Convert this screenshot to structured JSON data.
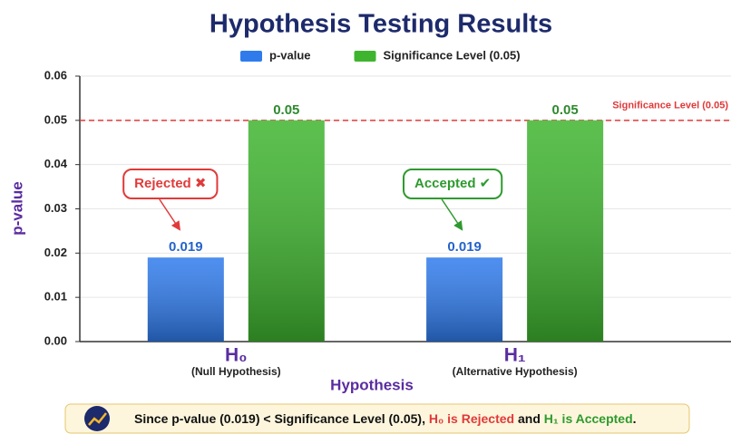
{
  "chart_data": {
    "type": "bar",
    "title": "Hypothesis Testing Results",
    "x_label": "Hypothesis",
    "y_label": "p-value",
    "categories": [
      "H₀",
      "H₁"
    ],
    "category_notes": [
      "(Null Hypothesis)",
      "(Alternative Hypothesis)"
    ],
    "series": [
      {
        "name": "p-value",
        "color": "#2f7bec",
        "values": [
          0.019,
          0.019
        ]
      },
      {
        "name": "Significance Level (0.05)",
        "color": "#3fb52f",
        "values": [
          0.05,
          0.05
        ]
      }
    ],
    "ylim": [
      0,
      0.06
    ],
    "yticks": [
      {
        "value": 0,
        "label": "0.00"
      },
      {
        "value": 0.01,
        "label": "0.01"
      },
      {
        "value": 0.02,
        "label": "0.02"
      },
      {
        "value": 0.03,
        "label": "0.03"
      },
      {
        "value": 0.04,
        "label": "0.04"
      },
      {
        "value": 0.05,
        "label": "0.05"
      },
      {
        "value": 0.06,
        "label": "0.06"
      }
    ],
    "grid": true,
    "threshold": {
      "value": 0.05,
      "label": "Significance Level (0.05)",
      "color": "#e03a3a"
    },
    "annotations": [
      {
        "text": "Rejected ✖",
        "color": "#e03a3a"
      },
      {
        "text": "Accepted ✔",
        "color": "#2e9a2e"
      }
    ],
    "footer": [
      {
        "text": "Since p-value (0.019) < Significance Level (0.05), ",
        "color": "#111111"
      },
      {
        "text": "H₀ is Rejected",
        "color": "#e03a3a"
      },
      {
        "text": " and ",
        "color": "#111111"
      },
      {
        "text": "H₁ is Accepted",
        "color": "#2e9a2e"
      },
      {
        "text": ".",
        "color": "#111111"
      }
    ]
  }
}
